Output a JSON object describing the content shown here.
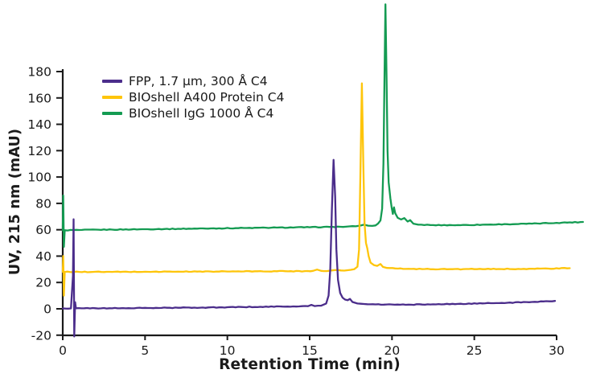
{
  "chart_data": {
    "type": "line",
    "title": "",
    "xlabel": "Retention Time (min)",
    "ylabel": "UV, 215 nm (mAU)",
    "xlim": [
      0,
      31.8
    ],
    "ylim": [
      -20,
      180
    ],
    "xticks": [
      0,
      5,
      10,
      15,
      20,
      25,
      30
    ],
    "yticks": [
      180,
      160,
      140,
      120,
      100,
      80,
      60,
      40,
      20,
      0,
      -20
    ],
    "grid": false,
    "legend_position": "upper-left-inside",
    "axis_color": "#1a1a1a",
    "legend": [
      {
        "label": "FPP, 1.7 µm, 300 Å C4",
        "color": "#4B2D8B"
      },
      {
        "label": "BIOshell A400 Protein C4",
        "color": "#FEC50B"
      },
      {
        "label": "BIOshell IgG 1000 Å C4",
        "color": "#149B52"
      }
    ],
    "series": [
      {
        "name": "BIOshell IgG 1000 Å C4",
        "color": "#149B52",
        "peak": {
          "retention_min": 19.6,
          "height_mAU": 231,
          "clipped_above_axis_max": true
        },
        "points": [
          [
            0,
            59.5
          ],
          [
            0.03,
            86
          ],
          [
            0.07,
            47
          ],
          [
            0.12,
            59.6
          ],
          [
            1,
            59.8
          ],
          [
            3,
            60.1
          ],
          [
            5,
            60.4
          ],
          [
            7,
            60.7
          ],
          [
            9,
            61.0
          ],
          [
            11,
            61.3
          ],
          [
            13,
            61.6
          ],
          [
            15,
            61.9
          ],
          [
            16.2,
            62.1
          ],
          [
            17.2,
            62.3
          ],
          [
            17.8,
            62.6
          ],
          [
            18.1,
            63.2
          ],
          [
            18.3,
            63.8
          ],
          [
            18.55,
            63.1
          ],
          [
            18.8,
            62.9
          ],
          [
            19.0,
            63.3
          ],
          [
            19.15,
            64.6
          ],
          [
            19.3,
            67
          ],
          [
            19.4,
            76
          ],
          [
            19.48,
            110
          ],
          [
            19.54,
            170
          ],
          [
            19.6,
            231
          ],
          [
            19.67,
            175
          ],
          [
            19.73,
            120
          ],
          [
            19.8,
            96
          ],
          [
            19.9,
            84
          ],
          [
            19.98,
            77
          ],
          [
            20.05,
            72
          ],
          [
            20.12,
            77
          ],
          [
            20.2,
            72.5
          ],
          [
            20.35,
            69
          ],
          [
            20.55,
            67.8
          ],
          [
            20.75,
            68.8
          ],
          [
            20.95,
            66.2
          ],
          [
            21.1,
            67.3
          ],
          [
            21.3,
            64.6
          ],
          [
            21.6,
            63.8
          ],
          [
            22.5,
            63.5
          ],
          [
            24,
            63.5
          ],
          [
            25.5,
            63.8
          ],
          [
            27,
            64.2
          ],
          [
            28.5,
            64.6
          ],
          [
            30,
            65.2
          ],
          [
            31.6,
            65.9
          ]
        ]
      },
      {
        "name": "BIOshell A400 Protein C4",
        "color": "#FEC50B",
        "peak": {
          "retention_min": 18.17,
          "height_mAU": 171
        },
        "points": [
          [
            0,
            28
          ],
          [
            0.03,
            40
          ],
          [
            0.07,
            10
          ],
          [
            0.12,
            28
          ],
          [
            1,
            28
          ],
          [
            3,
            28
          ],
          [
            5,
            28.1
          ],
          [
            7,
            28.2
          ],
          [
            9,
            28.3
          ],
          [
            11,
            28.4
          ],
          [
            13,
            28.5
          ],
          [
            14.7,
            28.6
          ],
          [
            15.2,
            28.8
          ],
          [
            15.45,
            29.8
          ],
          [
            15.7,
            28.8
          ],
          [
            16.2,
            28.9
          ],
          [
            16.55,
            29.4
          ],
          [
            16.9,
            29.1
          ],
          [
            17.3,
            29.3
          ],
          [
            17.7,
            30.0
          ],
          [
            17.9,
            32
          ],
          [
            18.0,
            45
          ],
          [
            18.08,
            100
          ],
          [
            18.17,
            171
          ],
          [
            18.26,
            110
          ],
          [
            18.33,
            65
          ],
          [
            18.42,
            50
          ],
          [
            18.5,
            46
          ],
          [
            18.58,
            40
          ],
          [
            18.7,
            35
          ],
          [
            18.9,
            33.2
          ],
          [
            19.1,
            32.6
          ],
          [
            19.3,
            34
          ],
          [
            19.45,
            31.8
          ],
          [
            19.7,
            31
          ],
          [
            20.2,
            30.6
          ],
          [
            21,
            30.3
          ],
          [
            22,
            30.2
          ],
          [
            23.5,
            30.1
          ],
          [
            25,
            30.1
          ],
          [
            26.5,
            30.2
          ],
          [
            28,
            30.3
          ],
          [
            29.5,
            30.5
          ],
          [
            30.8,
            30.8
          ]
        ]
      },
      {
        "name": "FPP, 1.7 µm, 300 Å C4",
        "color": "#4B2D8B",
        "peak": {
          "retention_min": 16.45,
          "height_mAU": 113
        },
        "points": [
          [
            0,
            0.3
          ],
          [
            0.5,
            0.3
          ],
          [
            0.62,
            25
          ],
          [
            0.66,
            68
          ],
          [
            0.7,
            -21
          ],
          [
            0.75,
            5
          ],
          [
            0.8,
            0.4
          ],
          [
            2,
            0.4
          ],
          [
            4,
            0.5
          ],
          [
            6,
            0.7
          ],
          [
            8,
            0.9
          ],
          [
            10,
            1.2
          ],
          [
            12,
            1.5
          ],
          [
            14,
            1.8
          ],
          [
            14.9,
            2.0
          ],
          [
            15.1,
            3.0
          ],
          [
            15.3,
            2.1
          ],
          [
            15.7,
            2.4
          ],
          [
            16.0,
            4.0
          ],
          [
            16.15,
            10
          ],
          [
            16.25,
            30
          ],
          [
            16.35,
            75
          ],
          [
            16.45,
            113
          ],
          [
            16.55,
            85
          ],
          [
            16.62,
            45
          ],
          [
            16.72,
            22
          ],
          [
            16.85,
            12
          ],
          [
            17.0,
            8.5
          ],
          [
            17.15,
            7
          ],
          [
            17.3,
            6.5
          ],
          [
            17.45,
            7.5
          ],
          [
            17.6,
            5.2
          ],
          [
            17.9,
            4.0
          ],
          [
            18.5,
            3.5
          ],
          [
            19.5,
            3.2
          ],
          [
            21,
            3.2
          ],
          [
            22.5,
            3.4
          ],
          [
            24,
            3.7
          ],
          [
            25.5,
            4.1
          ],
          [
            27,
            4.6
          ],
          [
            28.5,
            5.2
          ],
          [
            29.9,
            6.0
          ]
        ]
      }
    ]
  }
}
